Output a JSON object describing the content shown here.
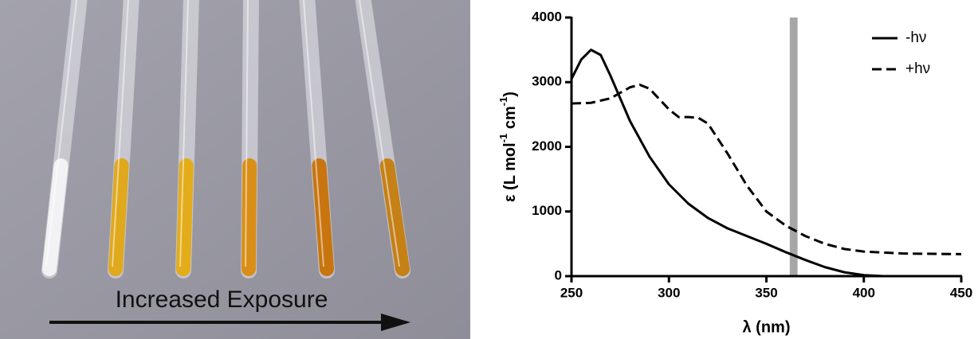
{
  "photo": {
    "caption": "Increased Exposure"
  },
  "chart_data": {
    "type": "line",
    "x_label": "λ (nm)",
    "y_label": [
      "ε (L mol",
      "-1",
      " cm",
      "-1",
      ")"
    ],
    "xlim": [
      250,
      450
    ],
    "xticks": [
      250,
      300,
      350,
      400,
      450
    ],
    "ylim": [
      0,
      4000
    ],
    "yticks": [
      0,
      1000,
      2000,
      3000,
      4000
    ],
    "highlight": [
      362,
      366
    ],
    "highlight_color": "#a6a6a6",
    "legend": "upper right",
    "series": [
      {
        "name": "-hν",
        "color": "#000000",
        "linestyle": "solid",
        "x": [
          250,
          255,
          260,
          265,
          270,
          280,
          290,
          300,
          310,
          320,
          330,
          340,
          350,
          360,
          370,
          380,
          390,
          400,
          410,
          420,
          430
        ],
        "values": [
          3050,
          3350,
          3500,
          3420,
          3100,
          2400,
          1850,
          1420,
          1120,
          900,
          740,
          620,
          500,
          370,
          250,
          140,
          60,
          15,
          0,
          0,
          0
        ]
      },
      {
        "name": "+hν",
        "color": "#000000",
        "linestyle": "dashed",
        "x": [
          250,
          260,
          270,
          280,
          285,
          290,
          300,
          305,
          310,
          315,
          320,
          330,
          340,
          350,
          360,
          370,
          380,
          390,
          400,
          420,
          450
        ],
        "values": [
          2670,
          2680,
          2750,
          2920,
          2960,
          2900,
          2580,
          2460,
          2460,
          2450,
          2360,
          1900,
          1400,
          1000,
          780,
          620,
          500,
          420,
          380,
          350,
          340
        ]
      }
    ]
  }
}
